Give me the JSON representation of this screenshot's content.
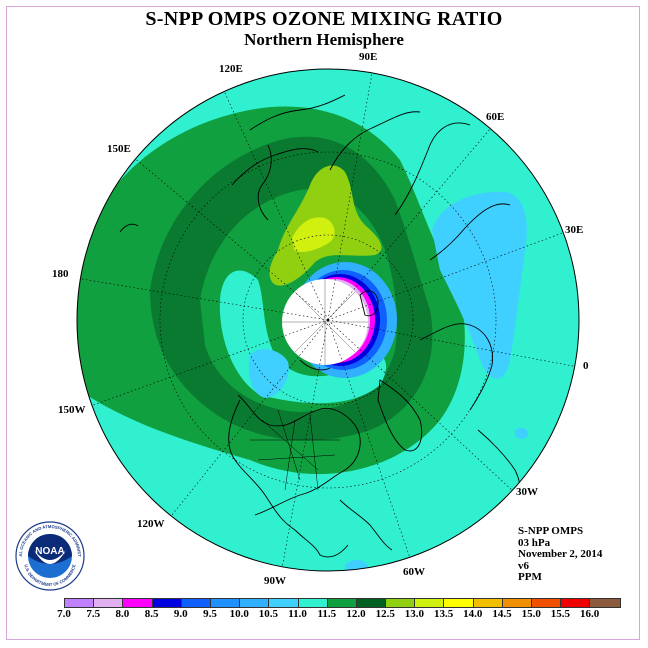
{
  "title": "S-NPP OMPS OZONE MIXING RATIO",
  "subtitle": "Northern Hemisphere",
  "longitude_labels": {
    "e120": "120E",
    "e90": "90E",
    "e60": "60E",
    "e150": "150E",
    "e30": "30E",
    "l180": "180",
    "l0": "0",
    "w150": "150W",
    "w30": "30W",
    "w120": "120W",
    "w90": "90W",
    "w60": "60W"
  },
  "info": {
    "instrument": "S-NPP OMPS",
    "level": "03 hPa",
    "date": "November 2, 2014",
    "version": "v6",
    "units": "PPM"
  },
  "colorbar": {
    "ticks": [
      "7.0",
      "7.5",
      "8.0",
      "8.5",
      "9.0",
      "9.5",
      "10.0",
      "10.5",
      "11.0",
      "11.5",
      "12.0",
      "12.5",
      "13.0",
      "13.5",
      "14.0",
      "14.5",
      "15.0",
      "15.5",
      "16.0"
    ],
    "colors": [
      "#c080ff",
      "#e0b0f0",
      "#ff00ff",
      "#0000e0",
      "#1060ff",
      "#2090ff",
      "#30b0ff",
      "#40d0ff",
      "#30f0d0",
      "#10a040",
      "#006020",
      "#90d010",
      "#d0f010",
      "#ffff00",
      "#f0c000",
      "#f09000",
      "#f05000",
      "#f00000",
      "#8c5a3c"
    ]
  },
  "logo": {
    "text": "NOAA",
    "ring_text": "NATIONAL OCEANIC AND ATMOSPHERIC ADMINISTRATION",
    "ring_text_bottom": "U.S. DEPARTMENT OF COMMERCE"
  },
  "map_colors": {
    "ocean_base": "#30f0d0",
    "band_11_5": "#10a040",
    "band_12_0": "#0a7a30",
    "band_12_5": "#90d010",
    "band_13_0": "#d0f010",
    "low_10_5": "#40d0ff",
    "low_10_0": "#30b0ff",
    "pole_mask": "#ffffff",
    "coast": "#000000"
  }
}
